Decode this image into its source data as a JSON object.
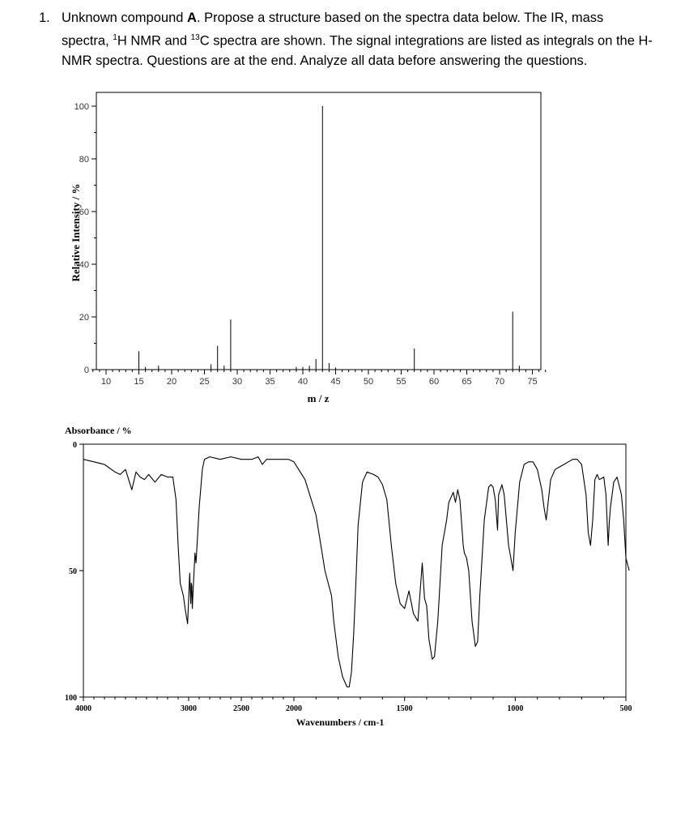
{
  "question": {
    "number": "1.",
    "text_before": "Unknown compound ",
    "compound": "A",
    "text_mid1": ". Propose a structure based on the spectra data below. The IR, mass spectra, ",
    "h_sup": "1",
    "text_mid2": "H NMR and ",
    "c_sup": "13",
    "text_after": "C spectra are shown. The signal integrations are listed as integrals on the H-NMR spectra. Questions are at the end. Analyze all data before answering the questions."
  },
  "chart_data": [
    {
      "type": "bar",
      "xlabel": "m / z",
      "ylabel": "Relative Intensity / %",
      "xlim": [
        7,
        77
      ],
      "ylim": [
        0,
        105
      ],
      "x_ticks": [
        10,
        15,
        20,
        25,
        30,
        35,
        40,
        45,
        50,
        55,
        60,
        65,
        70,
        75
      ],
      "y_ticks": [
        0,
        20,
        40,
        60,
        80,
        100
      ],
      "peaks": [
        {
          "mz": 15,
          "value": 7
        },
        {
          "mz": 16,
          "value": 1
        },
        {
          "mz": 18,
          "value": 1.5
        },
        {
          "mz": 26,
          "value": 2
        },
        {
          "mz": 27,
          "value": 9
        },
        {
          "mz": 28,
          "value": 1.5
        },
        {
          "mz": 29,
          "value": 19
        },
        {
          "mz": 39,
          "value": 1
        },
        {
          "mz": 40,
          "value": 1
        },
        {
          "mz": 41,
          "value": 1.5
        },
        {
          "mz": 42,
          "value": 4
        },
        {
          "mz": 43,
          "value": 100
        },
        {
          "mz": 44,
          "value": 2.5
        },
        {
          "mz": 45,
          "value": 0.8
        },
        {
          "mz": 57,
          "value": 8
        },
        {
          "mz": 72,
          "value": 22
        },
        {
          "mz": 73,
          "value": 1.5
        }
      ]
    },
    {
      "type": "line",
      "xlabel": "Wavenumbers / cm-1",
      "ylabel": "Absorbance / %",
      "x_ticks": [
        4000,
        3000,
        2500,
        2000,
        1500,
        1000,
        500
      ],
      "y_ticks": [
        0,
        50,
        100
      ],
      "ylim_reversed": [
        0,
        100
      ],
      "series": [
        {
          "points": [
            [
              4000,
              6
            ],
            [
              3900,
              7
            ],
            [
              3800,
              8
            ],
            [
              3700,
              11
            ],
            [
              3650,
              12
            ],
            [
              3600,
              10
            ],
            [
              3540,
              18
            ],
            [
              3500,
              11
            ],
            [
              3460,
              13
            ],
            [
              3420,
              14
            ],
            [
              3380,
              12
            ],
            [
              3320,
              15
            ],
            [
              3260,
              12
            ],
            [
              3200,
              13
            ],
            [
              3150,
              13
            ],
            [
              3120,
              22
            ],
            [
              3100,
              40
            ],
            [
              3080,
              55
            ],
            [
              3050,
              60
            ],
            [
              3030,
              66
            ],
            [
              3010,
              71
            ],
            [
              2990,
              51
            ],
            [
              2980,
              63
            ],
            [
              2975,
              55
            ],
            [
              2970,
              56
            ],
            [
              2965,
              65
            ],
            [
              2955,
              56
            ],
            [
              2940,
              43
            ],
            [
              2930,
              47
            ],
            [
              2900,
              25
            ],
            [
              2870,
              10
            ],
            [
              2850,
              6
            ],
            [
              2800,
              5
            ],
            [
              2700,
              6
            ],
            [
              2600,
              5
            ],
            [
              2500,
              6
            ],
            [
              2400,
              6
            ],
            [
              2340,
              5
            ],
            [
              2300,
              8
            ],
            [
              2260,
              6
            ],
            [
              2200,
              6
            ],
            [
              2100,
              6
            ],
            [
              2050,
              6
            ],
            [
              2000,
              7
            ],
            [
              1950,
              14
            ],
            [
              1900,
              28
            ],
            [
              1860,
              50
            ],
            [
              1830,
              60
            ],
            [
              1820,
              70
            ],
            [
              1800,
              84
            ],
            [
              1780,
              92
            ],
            [
              1760,
              96
            ],
            [
              1750,
              96
            ],
            [
              1740,
              90
            ],
            [
              1730,
              75
            ],
            [
              1720,
              55
            ],
            [
              1710,
              32
            ],
            [
              1690,
              15
            ],
            [
              1670,
              11
            ],
            [
              1640,
              12
            ],
            [
              1620,
              13
            ],
            [
              1600,
              16
            ],
            [
              1580,
              22
            ],
            [
              1560,
              40
            ],
            [
              1540,
              55
            ],
            [
              1520,
              63
            ],
            [
              1500,
              65
            ],
            [
              1480,
              58
            ],
            [
              1460,
              67
            ],
            [
              1440,
              70
            ],
            [
              1420,
              47
            ],
            [
              1410,
              61
            ],
            [
              1400,
              64
            ],
            [
              1390,
              77
            ],
            [
              1375,
              85
            ],
            [
              1365,
              84
            ],
            [
              1350,
              70
            ],
            [
              1330,
              40
            ],
            [
              1310,
              30
            ],
            [
              1300,
              23
            ],
            [
              1280,
              19
            ],
            [
              1270,
              23
            ],
            [
              1260,
              18
            ],
            [
              1250,
              22
            ],
            [
              1235,
              40
            ],
            [
              1230,
              43
            ],
            [
              1220,
              45
            ],
            [
              1210,
              50
            ],
            [
              1195,
              70
            ],
            [
              1180,
              80
            ],
            [
              1170,
              78
            ],
            [
              1160,
              60
            ],
            [
              1140,
              30
            ],
            [
              1120,
              17
            ],
            [
              1110,
              16
            ],
            [
              1100,
              17
            ],
            [
              1090,
              22
            ],
            [
              1080,
              34
            ],
            [
              1075,
              20
            ],
            [
              1060,
              16
            ],
            [
              1050,
              20
            ],
            [
              1040,
              30
            ],
            [
              1030,
              40
            ],
            [
              1020,
              45
            ],
            [
              1010,
              50
            ],
            [
              1000,
              35
            ],
            [
              980,
              15
            ],
            [
              960,
              8
            ],
            [
              940,
              7
            ],
            [
              920,
              7
            ],
            [
              900,
              10
            ],
            [
              880,
              18
            ],
            [
              870,
              25
            ],
            [
              860,
              30
            ],
            [
              850,
              22
            ],
            [
              840,
              14
            ],
            [
              820,
              10
            ],
            [
              800,
              9
            ],
            [
              780,
              8
            ],
            [
              760,
              7
            ],
            [
              740,
              6
            ],
            [
              720,
              6
            ],
            [
              700,
              8
            ],
            [
              680,
              20
            ],
            [
              670,
              35
            ],
            [
              660,
              40
            ],
            [
              650,
              30
            ],
            [
              640,
              14
            ],
            [
              630,
              12
            ],
            [
              620,
              14
            ],
            [
              600,
              13
            ],
            [
              590,
              20
            ],
            [
              580,
              40
            ],
            [
              575,
              31
            ],
            [
              570,
              25
            ],
            [
              555,
              15
            ],
            [
              540,
              13
            ],
            [
              520,
              20
            ],
            [
              510,
              30
            ],
            [
              500,
              45
            ],
            [
              485,
              50
            ]
          ]
        }
      ]
    }
  ]
}
